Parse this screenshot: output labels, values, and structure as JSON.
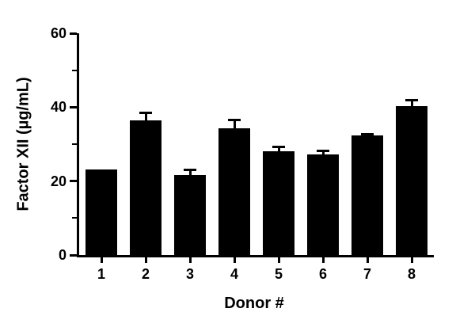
{
  "chart_data": {
    "type": "bar",
    "title": "",
    "xlabel": "Donor #",
    "ylabel": "Factor XII (µg/mL)",
    "categories": [
      "1",
      "2",
      "3",
      "4",
      "5",
      "6",
      "7",
      "8"
    ],
    "values": [
      23.2,
      36.5,
      21.7,
      34.2,
      28.0,
      27.3,
      32.4,
      40.2
    ],
    "errors": [
      0,
      2.2,
      1.6,
      2.6,
      1.5,
      1.2,
      0.7,
      2.0
    ],
    "error_type": "upper-only",
    "ylim": [
      0,
      60
    ],
    "yticks": [
      0,
      20,
      40,
      60
    ],
    "yminorticks": [
      10,
      30,
      50
    ],
    "bar_color": "#000000",
    "axis_color": "#000000",
    "background_color": "#ffffff",
    "grid": false,
    "legend": "none"
  }
}
